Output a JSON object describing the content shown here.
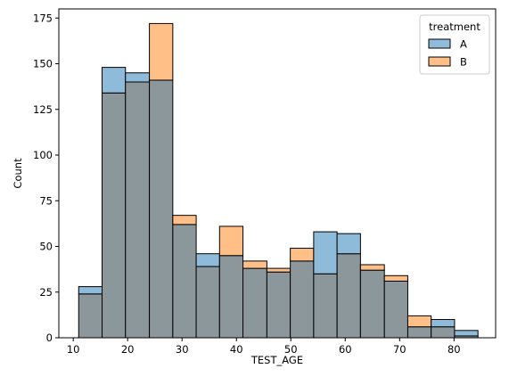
{
  "chart_data": {
    "type": "histogram",
    "xlabel": "TEST_AGE",
    "ylabel": "Count",
    "xlim": [
      7.35,
      87.65
    ],
    "ylim": [
      0,
      180
    ],
    "xticks": [
      10,
      20,
      30,
      40,
      50,
      60,
      70,
      80
    ],
    "yticks": [
      0,
      25,
      50,
      75,
      100,
      125,
      150,
      175
    ],
    "bin_edges": [
      11,
      15.3,
      19.6,
      24,
      28.3,
      32.6,
      36.9,
      41.2,
      45.6,
      49.9,
      54.2,
      58.5,
      62.8,
      67.2,
      71.5,
      75.8,
      80.1,
      84.4
    ],
    "series": [
      {
        "name": "A",
        "color": "#1f77b4",
        "values": [
          28,
          148,
          145,
          141,
          62,
          46,
          45,
          38,
          36,
          42,
          58,
          57,
          37,
          31,
          6,
          10,
          4
        ]
      },
      {
        "name": "B",
        "color": "#ff7f0e",
        "values": [
          24,
          134,
          140,
          172,
          67,
          39,
          61,
          42,
          38,
          49,
          35,
          46,
          40,
          34,
          12,
          6,
          1
        ]
      }
    ],
    "overlap_color": "#8c979c",
    "legend": {
      "title": "treatment",
      "placement": "top-right",
      "entries": [
        "A",
        "B"
      ]
    }
  }
}
